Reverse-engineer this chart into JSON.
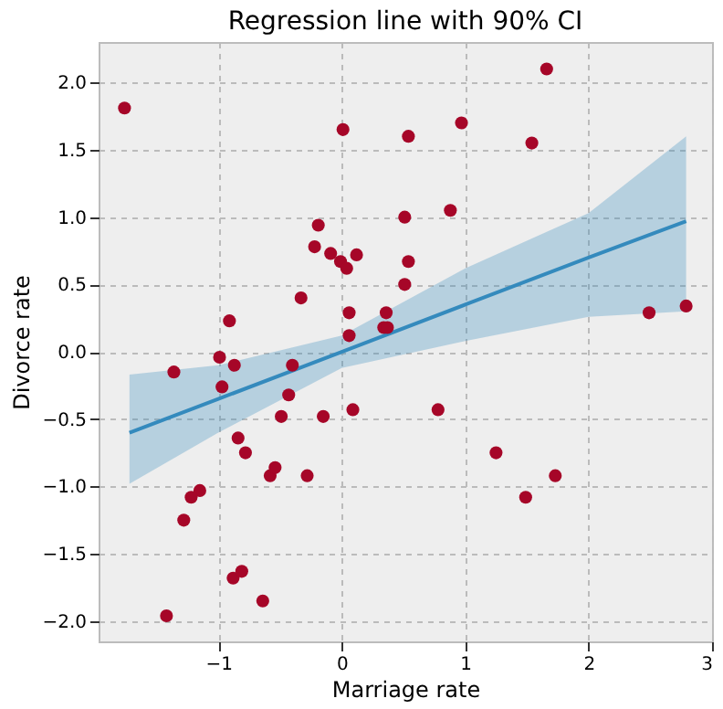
{
  "chart_data": {
    "type": "scatter",
    "title": "Regression line with 90% CI",
    "xlabel": "Marriage rate",
    "ylabel": "Divorce rate",
    "xlim": [
      -1.97,
      3.0
    ],
    "ylim": [
      -2.15,
      2.3
    ],
    "xticks": [
      -1,
      0,
      1,
      2,
      3
    ],
    "yticks": [
      {
        "value": -2,
        "label": "−2.0"
      },
      {
        "value": -1.5,
        "label": "−1.5"
      },
      {
        "value": -1,
        "label": "−1.0"
      },
      {
        "value": -0.5,
        "label": "−0.5"
      },
      {
        "value": 0,
        "label": "0.0"
      },
      {
        "value": 0.5,
        "label": "0.5"
      },
      {
        "value": 1,
        "label": "1.0"
      },
      {
        "value": 1.5,
        "label": "1.5"
      },
      {
        "value": 2,
        "label": "2.0"
      }
    ],
    "grid": true,
    "series": [
      {
        "type": "line",
        "color": "#348abd",
        "x": [
          -1.72,
          -1,
          0,
          1,
          2,
          2.79
        ],
        "values": [
          -0.6,
          -0.35,
          0.0,
          0.35,
          0.7,
          0.97
        ],
        "lower": [
          -0.98,
          -0.6,
          -0.12,
          0.08,
          0.26,
          0.3
        ],
        "upper": [
          -0.17,
          -0.1,
          0.12,
          0.62,
          1.03,
          1.6
        ]
      },
      {
        "color": "#a60628",
        "marker": "circle",
        "x": [
          -1.76,
          0.01,
          0.54,
          0.97,
          1.66,
          1.54,
          0.88,
          0.51,
          -0.19,
          -0.22,
          -0.09,
          -0.01,
          0.04,
          0.12,
          0.54,
          0.51,
          -0.33,
          0.06,
          0.36,
          0.34,
          0.37,
          0.06,
          -0.91,
          -1.36,
          -0.99,
          -0.87,
          -0.97,
          -0.4,
          -0.43,
          -0.49,
          -0.15,
          0.09,
          0.78,
          -0.84,
          -0.78,
          -0.58,
          -0.54,
          -0.28,
          -1.15,
          -1.22,
          -1.28,
          -0.88,
          -0.81,
          -0.64,
          -1.42,
          1.25,
          1.49,
          1.73,
          2.49,
          2.79
        ],
        "values": [
          1.81,
          1.65,
          1.6,
          1.7,
          2.1,
          1.55,
          1.05,
          1.0,
          0.94,
          0.78,
          0.73,
          0.67,
          0.62,
          0.72,
          0.67,
          0.5,
          0.4,
          0.29,
          0.29,
          0.18,
          0.18,
          0.12,
          0.23,
          -0.15,
          -0.04,
          -0.1,
          -0.26,
          -0.1,
          -0.32,
          -0.48,
          -0.48,
          -0.43,
          -0.43,
          -0.64,
          -0.75,
          -0.92,
          -0.86,
          -0.92,
          -1.03,
          -1.08,
          -1.25,
          -1.68,
          -1.63,
          -1.85,
          -1.96,
          -0.75,
          -1.08,
          -0.92,
          0.29,
          0.34
        ]
      }
    ]
  }
}
